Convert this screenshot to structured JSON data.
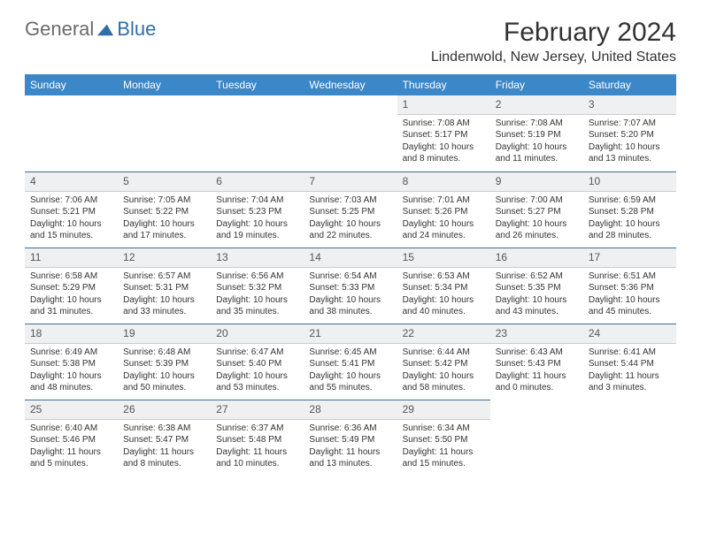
{
  "logo": {
    "text1": "General",
    "text2": "Blue",
    "shape_color": "#2f6fa8"
  },
  "title": "February 2024",
  "location": "Lindenwold, New Jersey, United States",
  "colors": {
    "header_bg": "#3b87c8",
    "header_text": "#ffffff",
    "daynum_bg": "#eef0f2",
    "border_top": "#3b6e97",
    "border_bottom": "#c8cdd2",
    "body_text": "#333333"
  },
  "weekdays": [
    "Sunday",
    "Monday",
    "Tuesday",
    "Wednesday",
    "Thursday",
    "Friday",
    "Saturday"
  ],
  "weeks": [
    [
      null,
      null,
      null,
      null,
      {
        "d": "1",
        "sr": "7:08 AM",
        "ss": "5:17 PM",
        "dl": "10 hours and 8 minutes."
      },
      {
        "d": "2",
        "sr": "7:08 AM",
        "ss": "5:19 PM",
        "dl": "10 hours and 11 minutes."
      },
      {
        "d": "3",
        "sr": "7:07 AM",
        "ss": "5:20 PM",
        "dl": "10 hours and 13 minutes."
      }
    ],
    [
      {
        "d": "4",
        "sr": "7:06 AM",
        "ss": "5:21 PM",
        "dl": "10 hours and 15 minutes."
      },
      {
        "d": "5",
        "sr": "7:05 AM",
        "ss": "5:22 PM",
        "dl": "10 hours and 17 minutes."
      },
      {
        "d": "6",
        "sr": "7:04 AM",
        "ss": "5:23 PM",
        "dl": "10 hours and 19 minutes."
      },
      {
        "d": "7",
        "sr": "7:03 AM",
        "ss": "5:25 PM",
        "dl": "10 hours and 22 minutes."
      },
      {
        "d": "8",
        "sr": "7:01 AM",
        "ss": "5:26 PM",
        "dl": "10 hours and 24 minutes."
      },
      {
        "d": "9",
        "sr": "7:00 AM",
        "ss": "5:27 PM",
        "dl": "10 hours and 26 minutes."
      },
      {
        "d": "10",
        "sr": "6:59 AM",
        "ss": "5:28 PM",
        "dl": "10 hours and 28 minutes."
      }
    ],
    [
      {
        "d": "11",
        "sr": "6:58 AM",
        "ss": "5:29 PM",
        "dl": "10 hours and 31 minutes."
      },
      {
        "d": "12",
        "sr": "6:57 AM",
        "ss": "5:31 PM",
        "dl": "10 hours and 33 minutes."
      },
      {
        "d": "13",
        "sr": "6:56 AM",
        "ss": "5:32 PM",
        "dl": "10 hours and 35 minutes."
      },
      {
        "d": "14",
        "sr": "6:54 AM",
        "ss": "5:33 PM",
        "dl": "10 hours and 38 minutes."
      },
      {
        "d": "15",
        "sr": "6:53 AM",
        "ss": "5:34 PM",
        "dl": "10 hours and 40 minutes."
      },
      {
        "d": "16",
        "sr": "6:52 AM",
        "ss": "5:35 PM",
        "dl": "10 hours and 43 minutes."
      },
      {
        "d": "17",
        "sr": "6:51 AM",
        "ss": "5:36 PM",
        "dl": "10 hours and 45 minutes."
      }
    ],
    [
      {
        "d": "18",
        "sr": "6:49 AM",
        "ss": "5:38 PM",
        "dl": "10 hours and 48 minutes."
      },
      {
        "d": "19",
        "sr": "6:48 AM",
        "ss": "5:39 PM",
        "dl": "10 hours and 50 minutes."
      },
      {
        "d": "20",
        "sr": "6:47 AM",
        "ss": "5:40 PM",
        "dl": "10 hours and 53 minutes."
      },
      {
        "d": "21",
        "sr": "6:45 AM",
        "ss": "5:41 PM",
        "dl": "10 hours and 55 minutes."
      },
      {
        "d": "22",
        "sr": "6:44 AM",
        "ss": "5:42 PM",
        "dl": "10 hours and 58 minutes."
      },
      {
        "d": "23",
        "sr": "6:43 AM",
        "ss": "5:43 PM",
        "dl": "11 hours and 0 minutes."
      },
      {
        "d": "24",
        "sr": "6:41 AM",
        "ss": "5:44 PM",
        "dl": "11 hours and 3 minutes."
      }
    ],
    [
      {
        "d": "25",
        "sr": "6:40 AM",
        "ss": "5:46 PM",
        "dl": "11 hours and 5 minutes."
      },
      {
        "d": "26",
        "sr": "6:38 AM",
        "ss": "5:47 PM",
        "dl": "11 hours and 8 minutes."
      },
      {
        "d": "27",
        "sr": "6:37 AM",
        "ss": "5:48 PM",
        "dl": "11 hours and 10 minutes."
      },
      {
        "d": "28",
        "sr": "6:36 AM",
        "ss": "5:49 PM",
        "dl": "11 hours and 13 minutes."
      },
      {
        "d": "29",
        "sr": "6:34 AM",
        "ss": "5:50 PM",
        "dl": "11 hours and 15 minutes."
      },
      null,
      null
    ]
  ],
  "labels": {
    "sunrise": "Sunrise:",
    "sunset": "Sunset:",
    "daylight": "Daylight:"
  }
}
